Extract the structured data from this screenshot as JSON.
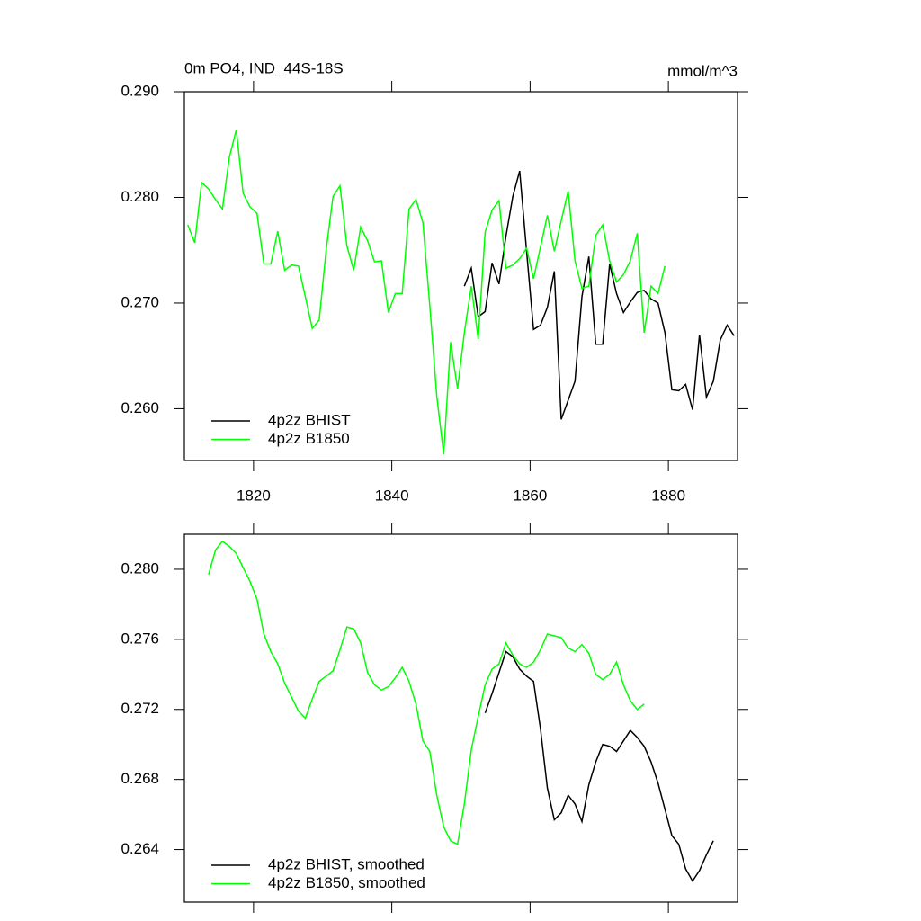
{
  "chart_data": [
    {
      "type": "line",
      "title": "0m PO4, IND_44S-18S",
      "units": "mmol/m^3",
      "xlim": [
        1810,
        1890
      ],
      "xticks": [
        1820,
        1840,
        1860,
        1880
      ],
      "ylim": [
        0.2551,
        0.29
      ],
      "yticks": [
        {
          "value": 0.29,
          "label": "0.290"
        },
        {
          "value": 0.28,
          "label": "0.280"
        },
        {
          "value": 0.27,
          "label": "0.270"
        },
        {
          "value": 0.26,
          "label": "0.260"
        }
      ],
      "series": [
        {
          "name": "4p2z BHIST",
          "color": "#000000",
          "x": [
            1850.5,
            1851.5,
            1852.5,
            1853.5,
            1854.5,
            1855.5,
            1856.5,
            1857.5,
            1858.5,
            1859.5,
            1860.5,
            1861.5,
            1862.5,
            1863.5,
            1864.5,
            1865.5,
            1866.5,
            1867.5,
            1868.5,
            1869.5,
            1870.5,
            1871.5,
            1872.5,
            1873.5,
            1874.5,
            1875.5,
            1876.5,
            1877.5,
            1878.5,
            1879.5,
            1880.5,
            1881.5,
            1882.5,
            1883.5,
            1884.5,
            1885.5,
            1886.5,
            1887.5,
            1888.5,
            1889.5
          ],
          "values": [
            0.2716,
            0.2733,
            0.2687,
            0.2692,
            0.2738,
            0.2718,
            0.2763,
            0.2801,
            0.2825,
            0.2749,
            0.2675,
            0.2679,
            0.2696,
            0.273,
            0.259,
            0.2608,
            0.2626,
            0.2706,
            0.2744,
            0.2661,
            0.2661,
            0.2737,
            0.2709,
            0.2691,
            0.2701,
            0.271,
            0.2712,
            0.2704,
            0.27,
            0.2672,
            0.2618,
            0.2617,
            0.2623,
            0.2599,
            0.267,
            0.2611,
            0.2626,
            0.2665,
            0.2679,
            0.2669
          ]
        },
        {
          "name": "4p2z B1850",
          "color": "#00ff00",
          "x": [
            1810.5,
            1811.5,
            1812.5,
            1813.5,
            1814.5,
            1815.5,
            1816.5,
            1817.5,
            1818.5,
            1819.5,
            1820.5,
            1821.5,
            1822.5,
            1823.5,
            1824.5,
            1825.5,
            1826.5,
            1827.5,
            1828.5,
            1829.5,
            1830.5,
            1831.5,
            1832.5,
            1833.5,
            1834.5,
            1835.5,
            1836.5,
            1837.5,
            1838.5,
            1839.5,
            1840.5,
            1841.5,
            1842.5,
            1843.5,
            1844.5,
            1845.5,
            1846.5,
            1847.5,
            1848.5,
            1849.5,
            1850.5,
            1851.5,
            1852.5,
            1853.5,
            1854.5,
            1855.5,
            1856.5,
            1857.5,
            1858.5,
            1859.5,
            1860.5,
            1861.5,
            1862.5,
            1863.5,
            1864.5,
            1865.5,
            1866.5,
            1867.5,
            1868.5,
            1869.5,
            1870.5,
            1871.5,
            1872.5,
            1873.5,
            1874.5,
            1875.5,
            1876.5,
            1877.5,
            1878.5,
            1879.5
          ],
          "values": [
            0.2774,
            0.2757,
            0.2814,
            0.2808,
            0.2798,
            0.2789,
            0.2838,
            0.2864,
            0.2804,
            0.2791,
            0.2785,
            0.2737,
            0.2737,
            0.2768,
            0.2731,
            0.2736,
            0.2735,
            0.2706,
            0.2676,
            0.2684,
            0.275,
            0.2801,
            0.2811,
            0.2754,
            0.2731,
            0.2772,
            0.2759,
            0.2739,
            0.274,
            0.2691,
            0.2709,
            0.2709,
            0.2789,
            0.2798,
            0.2776,
            0.2697,
            0.2612,
            0.2557,
            0.2663,
            0.2619,
            0.2672,
            0.2716,
            0.2666,
            0.2767,
            0.2788,
            0.2797,
            0.2733,
            0.2736,
            0.2742,
            0.2752,
            0.2723,
            0.2753,
            0.2783,
            0.2749,
            0.2778,
            0.2806,
            0.274,
            0.2714,
            0.2716,
            0.2764,
            0.2774,
            0.274,
            0.272,
            0.2727,
            0.274,
            0.2766,
            0.2672,
            0.2716,
            0.2709,
            0.2735
          ]
        }
      ]
    },
    {
      "type": "line",
      "xlim": [
        1810,
        1890
      ],
      "xticks": [
        1820,
        1840,
        1860,
        1880
      ],
      "xticklabels": false,
      "ylim": [
        0.261,
        0.282
      ],
      "yticks": [
        {
          "value": 0.28,
          "label": "0.280"
        },
        0.276,
        0.272,
        0.268,
        0.264
      ],
      "series": [
        {
          "name": "4p2z BHIST, smoothed",
          "color": "#000000",
          "x": [
            1853.5,
            1854.5,
            1855.5,
            1856.5,
            1857.5,
            1858.5,
            1859.5,
            1860.5,
            1861.5,
            1862.5,
            1863.5,
            1864.5,
            1865.5,
            1866.5,
            1867.5,
            1868.5,
            1869.5,
            1870.5,
            1871.5,
            1872.5,
            1873.5,
            1874.5,
            1875.5,
            1876.5,
            1877.5,
            1878.5,
            1879.5,
            1880.5,
            1881.5,
            1882.5,
            1883.5,
            1884.5,
            1885.5,
            1886.5
          ],
          "values": [
            0.2718,
            0.2729,
            0.2741,
            0.2753,
            0.275,
            0.2743,
            0.2739,
            0.2736,
            0.2709,
            0.2675,
            0.2657,
            0.2661,
            0.2671,
            0.2666,
            0.2656,
            0.2677,
            0.269,
            0.27,
            0.2699,
            0.2696,
            0.2702,
            0.2708,
            0.2704,
            0.2699,
            0.269,
            0.2678,
            0.2663,
            0.2648,
            0.2643,
            0.2629,
            0.2622,
            0.2628,
            0.2637,
            0.2645
          ]
        },
        {
          "name": "4p2z B1850, smoothed",
          "color": "#00ff00",
          "x": [
            1813.5,
            1814.5,
            1815.5,
            1816.5,
            1817.5,
            1818.5,
            1819.5,
            1820.5,
            1821.5,
            1822.5,
            1823.5,
            1824.5,
            1825.5,
            1826.5,
            1827.5,
            1828.5,
            1829.5,
            1830.5,
            1831.5,
            1832.5,
            1833.5,
            1834.5,
            1835.5,
            1836.5,
            1837.5,
            1838.5,
            1839.5,
            1840.5,
            1841.5,
            1842.5,
            1843.5,
            1844.5,
            1845.5,
            1846.5,
            1847.5,
            1848.5,
            1849.5,
            1850.5,
            1851.5,
            1852.5,
            1853.5,
            1854.5,
            1855.5,
            1856.5,
            1857.5,
            1858.5,
            1859.5,
            1860.5,
            1861.5,
            1862.5,
            1863.5,
            1864.5,
            1865.5,
            1866.5,
            1867.5,
            1868.5,
            1869.5,
            1870.5,
            1871.5,
            1872.5,
            1873.5,
            1874.5,
            1875.5,
            1876.5
          ],
          "values": [
            0.2797,
            0.2811,
            0.2816,
            0.2813,
            0.2809,
            0.2801,
            0.2793,
            0.2783,
            0.2763,
            0.2753,
            0.2746,
            0.2735,
            0.2727,
            0.2719,
            0.2715,
            0.2726,
            0.2736,
            0.2739,
            0.2742,
            0.2754,
            0.2767,
            0.2766,
            0.2758,
            0.2741,
            0.2734,
            0.2731,
            0.2733,
            0.2738,
            0.2744,
            0.2736,
            0.2723,
            0.2702,
            0.2696,
            0.2671,
            0.2653,
            0.2645,
            0.2643,
            0.2666,
            0.2697,
            0.2716,
            0.2734,
            0.2743,
            0.2746,
            0.2758,
            0.2751,
            0.2746,
            0.2744,
            0.2747,
            0.2754,
            0.2763,
            0.2762,
            0.2761,
            0.2755,
            0.2753,
            0.2757,
            0.2752,
            0.274,
            0.2737,
            0.274,
            0.2747,
            0.2734,
            0.2725,
            0.272,
            0.2723
          ]
        }
      ]
    }
  ]
}
